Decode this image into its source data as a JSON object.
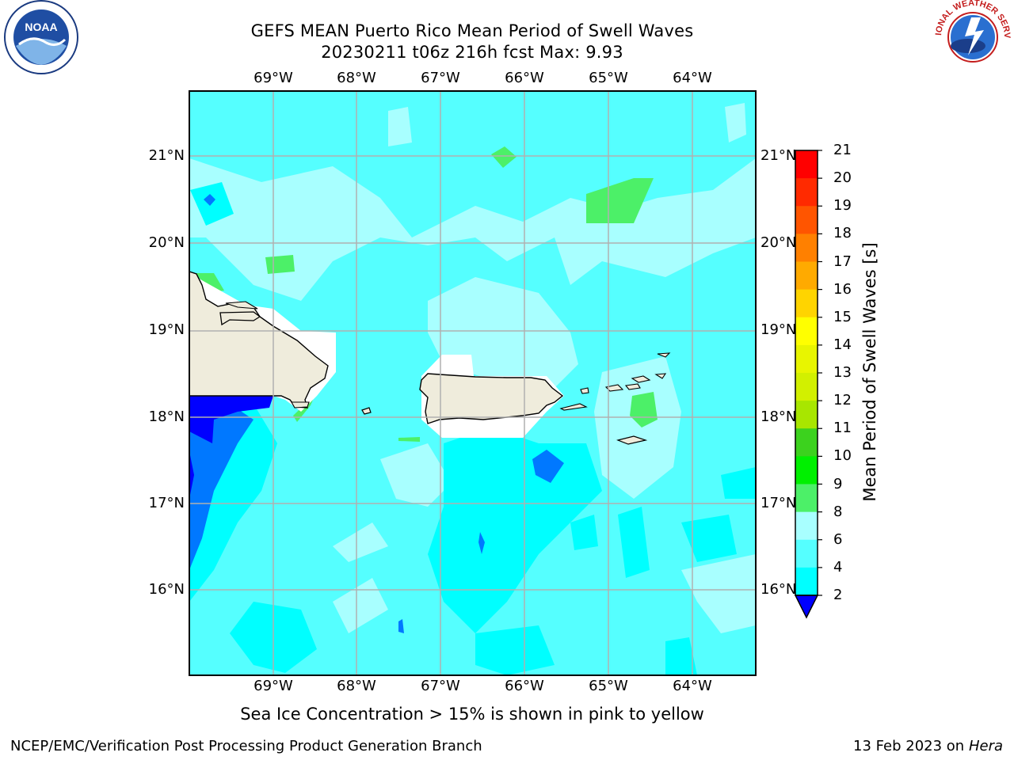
{
  "title": {
    "line1": "GEFS MEAN Puerto Rico Mean Period of Swell Waves",
    "line2": "20230211 t06z 216h fcst   Max: 9.93"
  },
  "map": {
    "longitude_labels": [
      "69°W",
      "68°W",
      "67°W",
      "66°W",
      "65°W",
      "64°W"
    ],
    "latitude_labels": [
      "21°N",
      "20°N",
      "19°N",
      "18°N",
      "17°N",
      "16°N"
    ],
    "land_color": "#efecdc",
    "grid_color": "#b0b0b0",
    "features": [
      "hispaniola-land",
      "puerto-rico-land",
      "virgin-islands",
      "st-croix",
      "mona-island"
    ]
  },
  "colorbar": {
    "title": "Mean Period of Swell Waves [s]",
    "ticks": [
      "21",
      "20",
      "19",
      "18",
      "17",
      "16",
      "15",
      "14",
      "13",
      "12",
      "11",
      "10",
      "9",
      "8",
      "6",
      "4",
      "2"
    ],
    "colors": [
      "#ff0000",
      "#ff2a00",
      "#ff5500",
      "#ff8000",
      "#ffaa00",
      "#ffd400",
      "#ffff00",
      "#e8f500",
      "#d2f000",
      "#a8e600",
      "#3cd21e",
      "#00f000",
      "#4cf068",
      "#a8ffff",
      "#55ffff",
      "#00ffff",
      "#0078ff",
      "#0000ff"
    ],
    "extend": "min"
  },
  "ice_note": "Sea Ice Concentration > 15% is shown in pink to yellow",
  "footer": {
    "left": "NCEP/EMC/Verification Post Processing Product Generation Branch",
    "date": "13 Feb 2023 on",
    "host": "Hera"
  },
  "logos": {
    "left": "noaa-logo",
    "left_text": "NOAA",
    "right": "national-weather-service-logo",
    "right_text": "NATIONAL WEATHER SERVICE"
  }
}
